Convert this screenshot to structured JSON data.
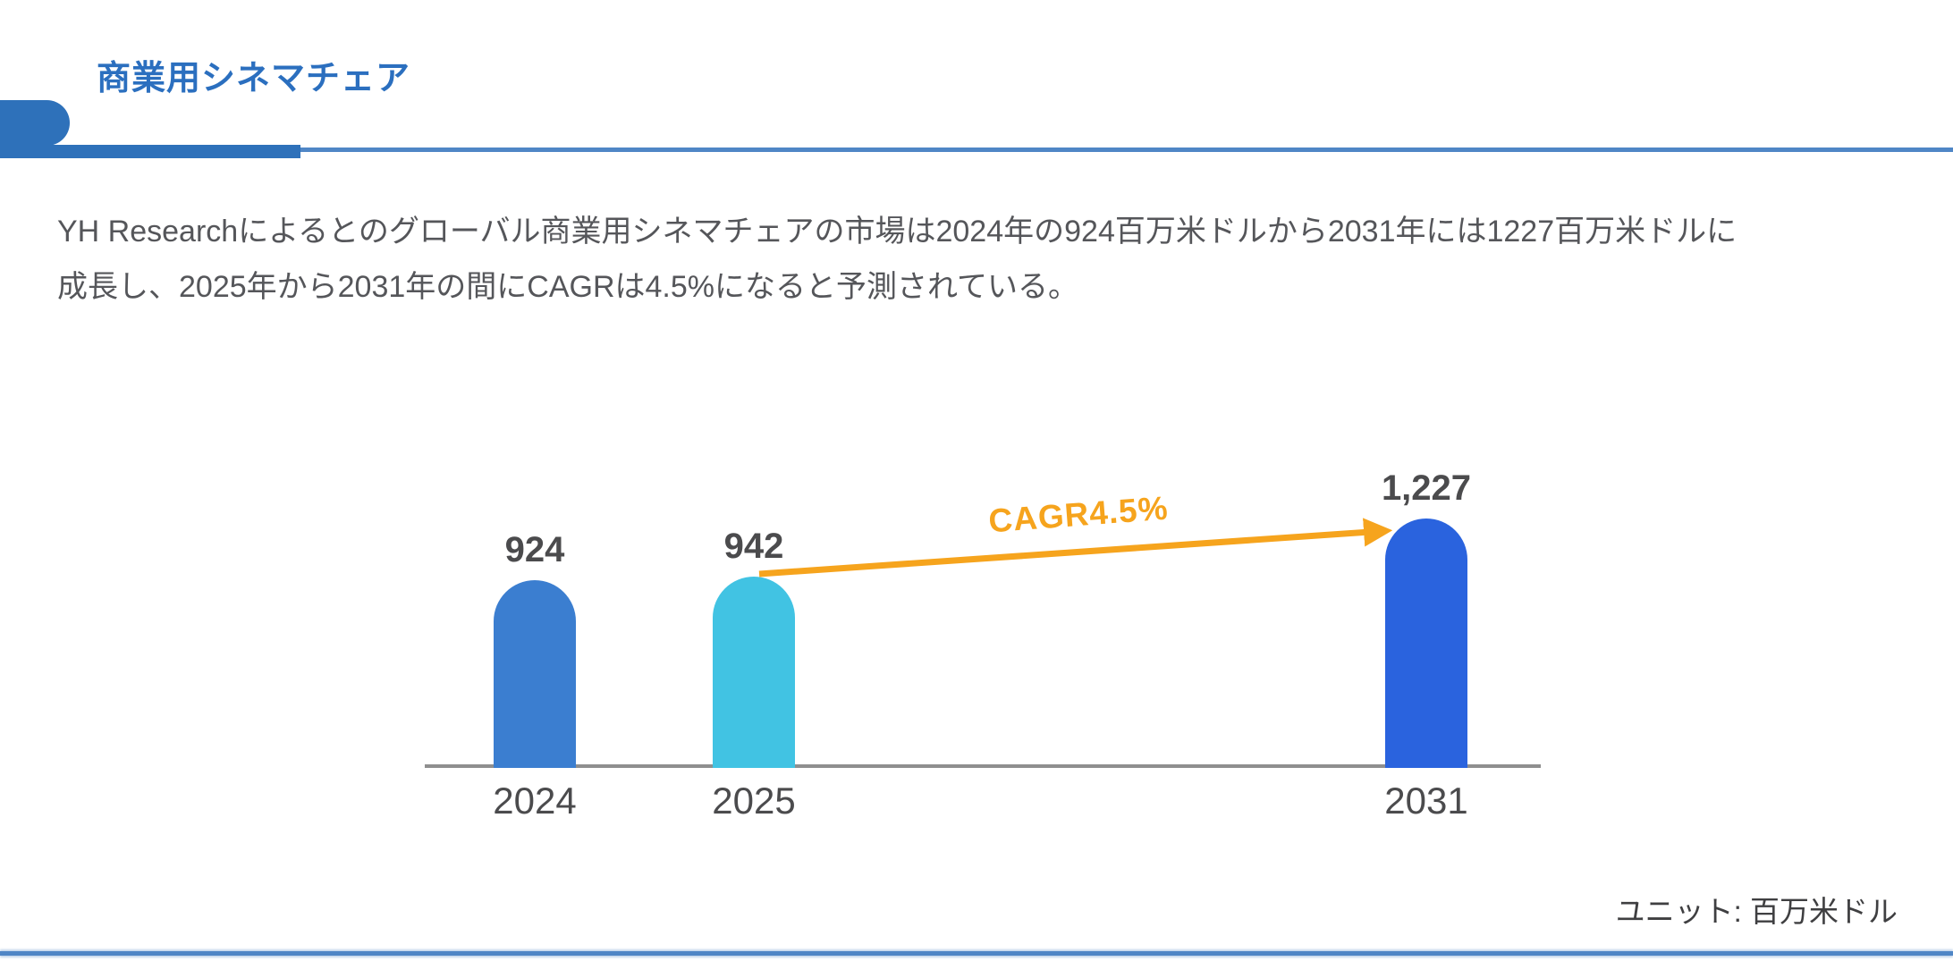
{
  "header": {
    "title": "商業用シネマチェア"
  },
  "summary": {
    "text": "YH Researchによるとのグローバル商業用シネマチェアの市場は2024年の924百万米ドルから2031年には1227百万米ドルに成長し、2025年から2031年の間にCAGRは4.5%になると予測されている。",
    "lines": [
      "YH Researchによるとのグローバル商業用シネマチェアの市場は2024年の924百万米ドルから2031年には1227百万米ドルに",
      "成長し、2025年から2031年の間にCAGRは4.5%になると予測されている。"
    ]
  },
  "chart_data": {
    "type": "bar",
    "title": "商業用シネマチェア",
    "categories": [
      "2024",
      "2025",
      "2031"
    ],
    "values": [
      924,
      942,
      1227
    ],
    "value_labels": [
      "924",
      "942",
      "1,227"
    ],
    "bar_colors": [
      "#3b7ed0",
      "#41c3e3",
      "#2a63de"
    ],
    "annotation": "CAGR4.5%",
    "unit": "ユニット: 百万米ドル",
    "xlabel": "",
    "ylabel": "",
    "ylim": [
      0,
      1300
    ],
    "grid": false,
    "legend": false,
    "arrow": {
      "from_category": "2025",
      "to_category": "2031"
    }
  },
  "colors": {
    "title_blue": "#2b6fbf",
    "accent_blue": "#2e71ba",
    "thin_line_blue": "#4f86c6",
    "text_gray": "#55565a",
    "label_gray": "#4b4b4d",
    "axis_gray": "#8f8f8f",
    "arrow_orange": "#f6a41d",
    "unit_gray": "#3f3f41"
  }
}
